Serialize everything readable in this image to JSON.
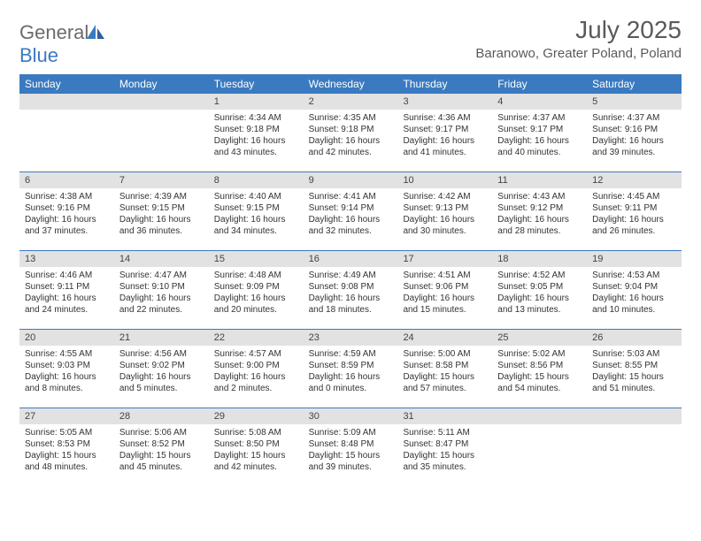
{
  "brand": {
    "part1": "General",
    "part2": "Blue"
  },
  "title": "July 2025",
  "location": "Baranowo, Greater Poland, Poland",
  "colors": {
    "header_bg": "#3a7ac0",
    "header_text": "#ffffff",
    "daynum_bg": "#e2e2e2",
    "text": "#333333",
    "sep": "#3a7ac0",
    "logo_gray": "#6b6b6b",
    "logo_blue": "#3a7ac0"
  },
  "day_names": [
    "Sunday",
    "Monday",
    "Tuesday",
    "Wednesday",
    "Thursday",
    "Friday",
    "Saturday"
  ],
  "weeks": [
    [
      {
        "n": "",
        "sr": "",
        "ss": "",
        "dl1": "",
        "dl2": ""
      },
      {
        "n": "",
        "sr": "",
        "ss": "",
        "dl1": "",
        "dl2": ""
      },
      {
        "n": "1",
        "sr": "Sunrise: 4:34 AM",
        "ss": "Sunset: 9:18 PM",
        "dl1": "Daylight: 16 hours",
        "dl2": "and 43 minutes."
      },
      {
        "n": "2",
        "sr": "Sunrise: 4:35 AM",
        "ss": "Sunset: 9:18 PM",
        "dl1": "Daylight: 16 hours",
        "dl2": "and 42 minutes."
      },
      {
        "n": "3",
        "sr": "Sunrise: 4:36 AM",
        "ss": "Sunset: 9:17 PM",
        "dl1": "Daylight: 16 hours",
        "dl2": "and 41 minutes."
      },
      {
        "n": "4",
        "sr": "Sunrise: 4:37 AM",
        "ss": "Sunset: 9:17 PM",
        "dl1": "Daylight: 16 hours",
        "dl2": "and 40 minutes."
      },
      {
        "n": "5",
        "sr": "Sunrise: 4:37 AM",
        "ss": "Sunset: 9:16 PM",
        "dl1": "Daylight: 16 hours",
        "dl2": "and 39 minutes."
      }
    ],
    [
      {
        "n": "6",
        "sr": "Sunrise: 4:38 AM",
        "ss": "Sunset: 9:16 PM",
        "dl1": "Daylight: 16 hours",
        "dl2": "and 37 minutes."
      },
      {
        "n": "7",
        "sr": "Sunrise: 4:39 AM",
        "ss": "Sunset: 9:15 PM",
        "dl1": "Daylight: 16 hours",
        "dl2": "and 36 minutes."
      },
      {
        "n": "8",
        "sr": "Sunrise: 4:40 AM",
        "ss": "Sunset: 9:15 PM",
        "dl1": "Daylight: 16 hours",
        "dl2": "and 34 minutes."
      },
      {
        "n": "9",
        "sr": "Sunrise: 4:41 AM",
        "ss": "Sunset: 9:14 PM",
        "dl1": "Daylight: 16 hours",
        "dl2": "and 32 minutes."
      },
      {
        "n": "10",
        "sr": "Sunrise: 4:42 AM",
        "ss": "Sunset: 9:13 PM",
        "dl1": "Daylight: 16 hours",
        "dl2": "and 30 minutes."
      },
      {
        "n": "11",
        "sr": "Sunrise: 4:43 AM",
        "ss": "Sunset: 9:12 PM",
        "dl1": "Daylight: 16 hours",
        "dl2": "and 28 minutes."
      },
      {
        "n": "12",
        "sr": "Sunrise: 4:45 AM",
        "ss": "Sunset: 9:11 PM",
        "dl1": "Daylight: 16 hours",
        "dl2": "and 26 minutes."
      }
    ],
    [
      {
        "n": "13",
        "sr": "Sunrise: 4:46 AM",
        "ss": "Sunset: 9:11 PM",
        "dl1": "Daylight: 16 hours",
        "dl2": "and 24 minutes."
      },
      {
        "n": "14",
        "sr": "Sunrise: 4:47 AM",
        "ss": "Sunset: 9:10 PM",
        "dl1": "Daylight: 16 hours",
        "dl2": "and 22 minutes."
      },
      {
        "n": "15",
        "sr": "Sunrise: 4:48 AM",
        "ss": "Sunset: 9:09 PM",
        "dl1": "Daylight: 16 hours",
        "dl2": "and 20 minutes."
      },
      {
        "n": "16",
        "sr": "Sunrise: 4:49 AM",
        "ss": "Sunset: 9:08 PM",
        "dl1": "Daylight: 16 hours",
        "dl2": "and 18 minutes."
      },
      {
        "n": "17",
        "sr": "Sunrise: 4:51 AM",
        "ss": "Sunset: 9:06 PM",
        "dl1": "Daylight: 16 hours",
        "dl2": "and 15 minutes."
      },
      {
        "n": "18",
        "sr": "Sunrise: 4:52 AM",
        "ss": "Sunset: 9:05 PM",
        "dl1": "Daylight: 16 hours",
        "dl2": "and 13 minutes."
      },
      {
        "n": "19",
        "sr": "Sunrise: 4:53 AM",
        "ss": "Sunset: 9:04 PM",
        "dl1": "Daylight: 16 hours",
        "dl2": "and 10 minutes."
      }
    ],
    [
      {
        "n": "20",
        "sr": "Sunrise: 4:55 AM",
        "ss": "Sunset: 9:03 PM",
        "dl1": "Daylight: 16 hours",
        "dl2": "and 8 minutes."
      },
      {
        "n": "21",
        "sr": "Sunrise: 4:56 AM",
        "ss": "Sunset: 9:02 PM",
        "dl1": "Daylight: 16 hours",
        "dl2": "and 5 minutes."
      },
      {
        "n": "22",
        "sr": "Sunrise: 4:57 AM",
        "ss": "Sunset: 9:00 PM",
        "dl1": "Daylight: 16 hours",
        "dl2": "and 2 minutes."
      },
      {
        "n": "23",
        "sr": "Sunrise: 4:59 AM",
        "ss": "Sunset: 8:59 PM",
        "dl1": "Daylight: 16 hours",
        "dl2": "and 0 minutes."
      },
      {
        "n": "24",
        "sr": "Sunrise: 5:00 AM",
        "ss": "Sunset: 8:58 PM",
        "dl1": "Daylight: 15 hours",
        "dl2": "and 57 minutes."
      },
      {
        "n": "25",
        "sr": "Sunrise: 5:02 AM",
        "ss": "Sunset: 8:56 PM",
        "dl1": "Daylight: 15 hours",
        "dl2": "and 54 minutes."
      },
      {
        "n": "26",
        "sr": "Sunrise: 5:03 AM",
        "ss": "Sunset: 8:55 PM",
        "dl1": "Daylight: 15 hours",
        "dl2": "and 51 minutes."
      }
    ],
    [
      {
        "n": "27",
        "sr": "Sunrise: 5:05 AM",
        "ss": "Sunset: 8:53 PM",
        "dl1": "Daylight: 15 hours",
        "dl2": "and 48 minutes."
      },
      {
        "n": "28",
        "sr": "Sunrise: 5:06 AM",
        "ss": "Sunset: 8:52 PM",
        "dl1": "Daylight: 15 hours",
        "dl2": "and 45 minutes."
      },
      {
        "n": "29",
        "sr": "Sunrise: 5:08 AM",
        "ss": "Sunset: 8:50 PM",
        "dl1": "Daylight: 15 hours",
        "dl2": "and 42 minutes."
      },
      {
        "n": "30",
        "sr": "Sunrise: 5:09 AM",
        "ss": "Sunset: 8:48 PM",
        "dl1": "Daylight: 15 hours",
        "dl2": "and 39 minutes."
      },
      {
        "n": "31",
        "sr": "Sunrise: 5:11 AM",
        "ss": "Sunset: 8:47 PM",
        "dl1": "Daylight: 15 hours",
        "dl2": "and 35 minutes."
      },
      {
        "n": "",
        "sr": "",
        "ss": "",
        "dl1": "",
        "dl2": ""
      },
      {
        "n": "",
        "sr": "",
        "ss": "",
        "dl1": "",
        "dl2": ""
      }
    ]
  ]
}
